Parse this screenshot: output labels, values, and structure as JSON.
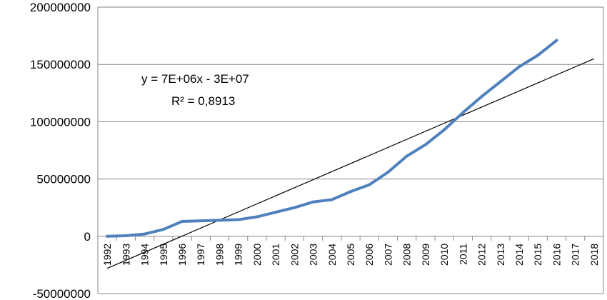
{
  "chart_data": {
    "type": "line",
    "title": "",
    "xlabel": "",
    "ylabel": "",
    "ylim": [
      -50000000,
      200000000
    ],
    "yticks": [
      -50000000,
      0,
      50000000,
      100000000,
      150000000,
      200000000
    ],
    "ytick_labels": [
      "-50000000",
      "0",
      "50000000",
      "100000000",
      "150000000",
      "200000000"
    ],
    "categories": [
      "1992",
      "1993",
      "1994",
      "1995",
      "1996",
      "1997",
      "1998",
      "1999",
      "2000",
      "2001",
      "2002",
      "2003",
      "2004",
      "2005",
      "2006",
      "2007",
      "2008",
      "2009",
      "2010",
      "2011",
      "2012",
      "2013",
      "2014",
      "2015",
      "2016",
      "2017",
      "2018"
    ],
    "grid": true,
    "legend": "none",
    "series": [
      {
        "color": "#4F81BD",
        "values": [
          0,
          500000,
          2000000,
          6000000,
          13000000,
          13500000,
          14000000,
          14500000,
          17000000,
          21000000,
          25000000,
          30000000,
          32000000,
          39000000,
          45000000,
          56000000,
          70000000,
          80000000,
          93000000,
          108000000,
          122000000,
          135000000,
          148000000,
          158000000,
          171000000,
          null,
          null
        ]
      }
    ],
    "trendline": {
      "color": "#000000",
      "x_start": "1992",
      "x_end": "2018",
      "y_start": -28000000,
      "y_end": 155000000,
      "equation_label": "y = 7E+06x - 3E+07",
      "r2_label": "R² = 0,8913"
    }
  }
}
